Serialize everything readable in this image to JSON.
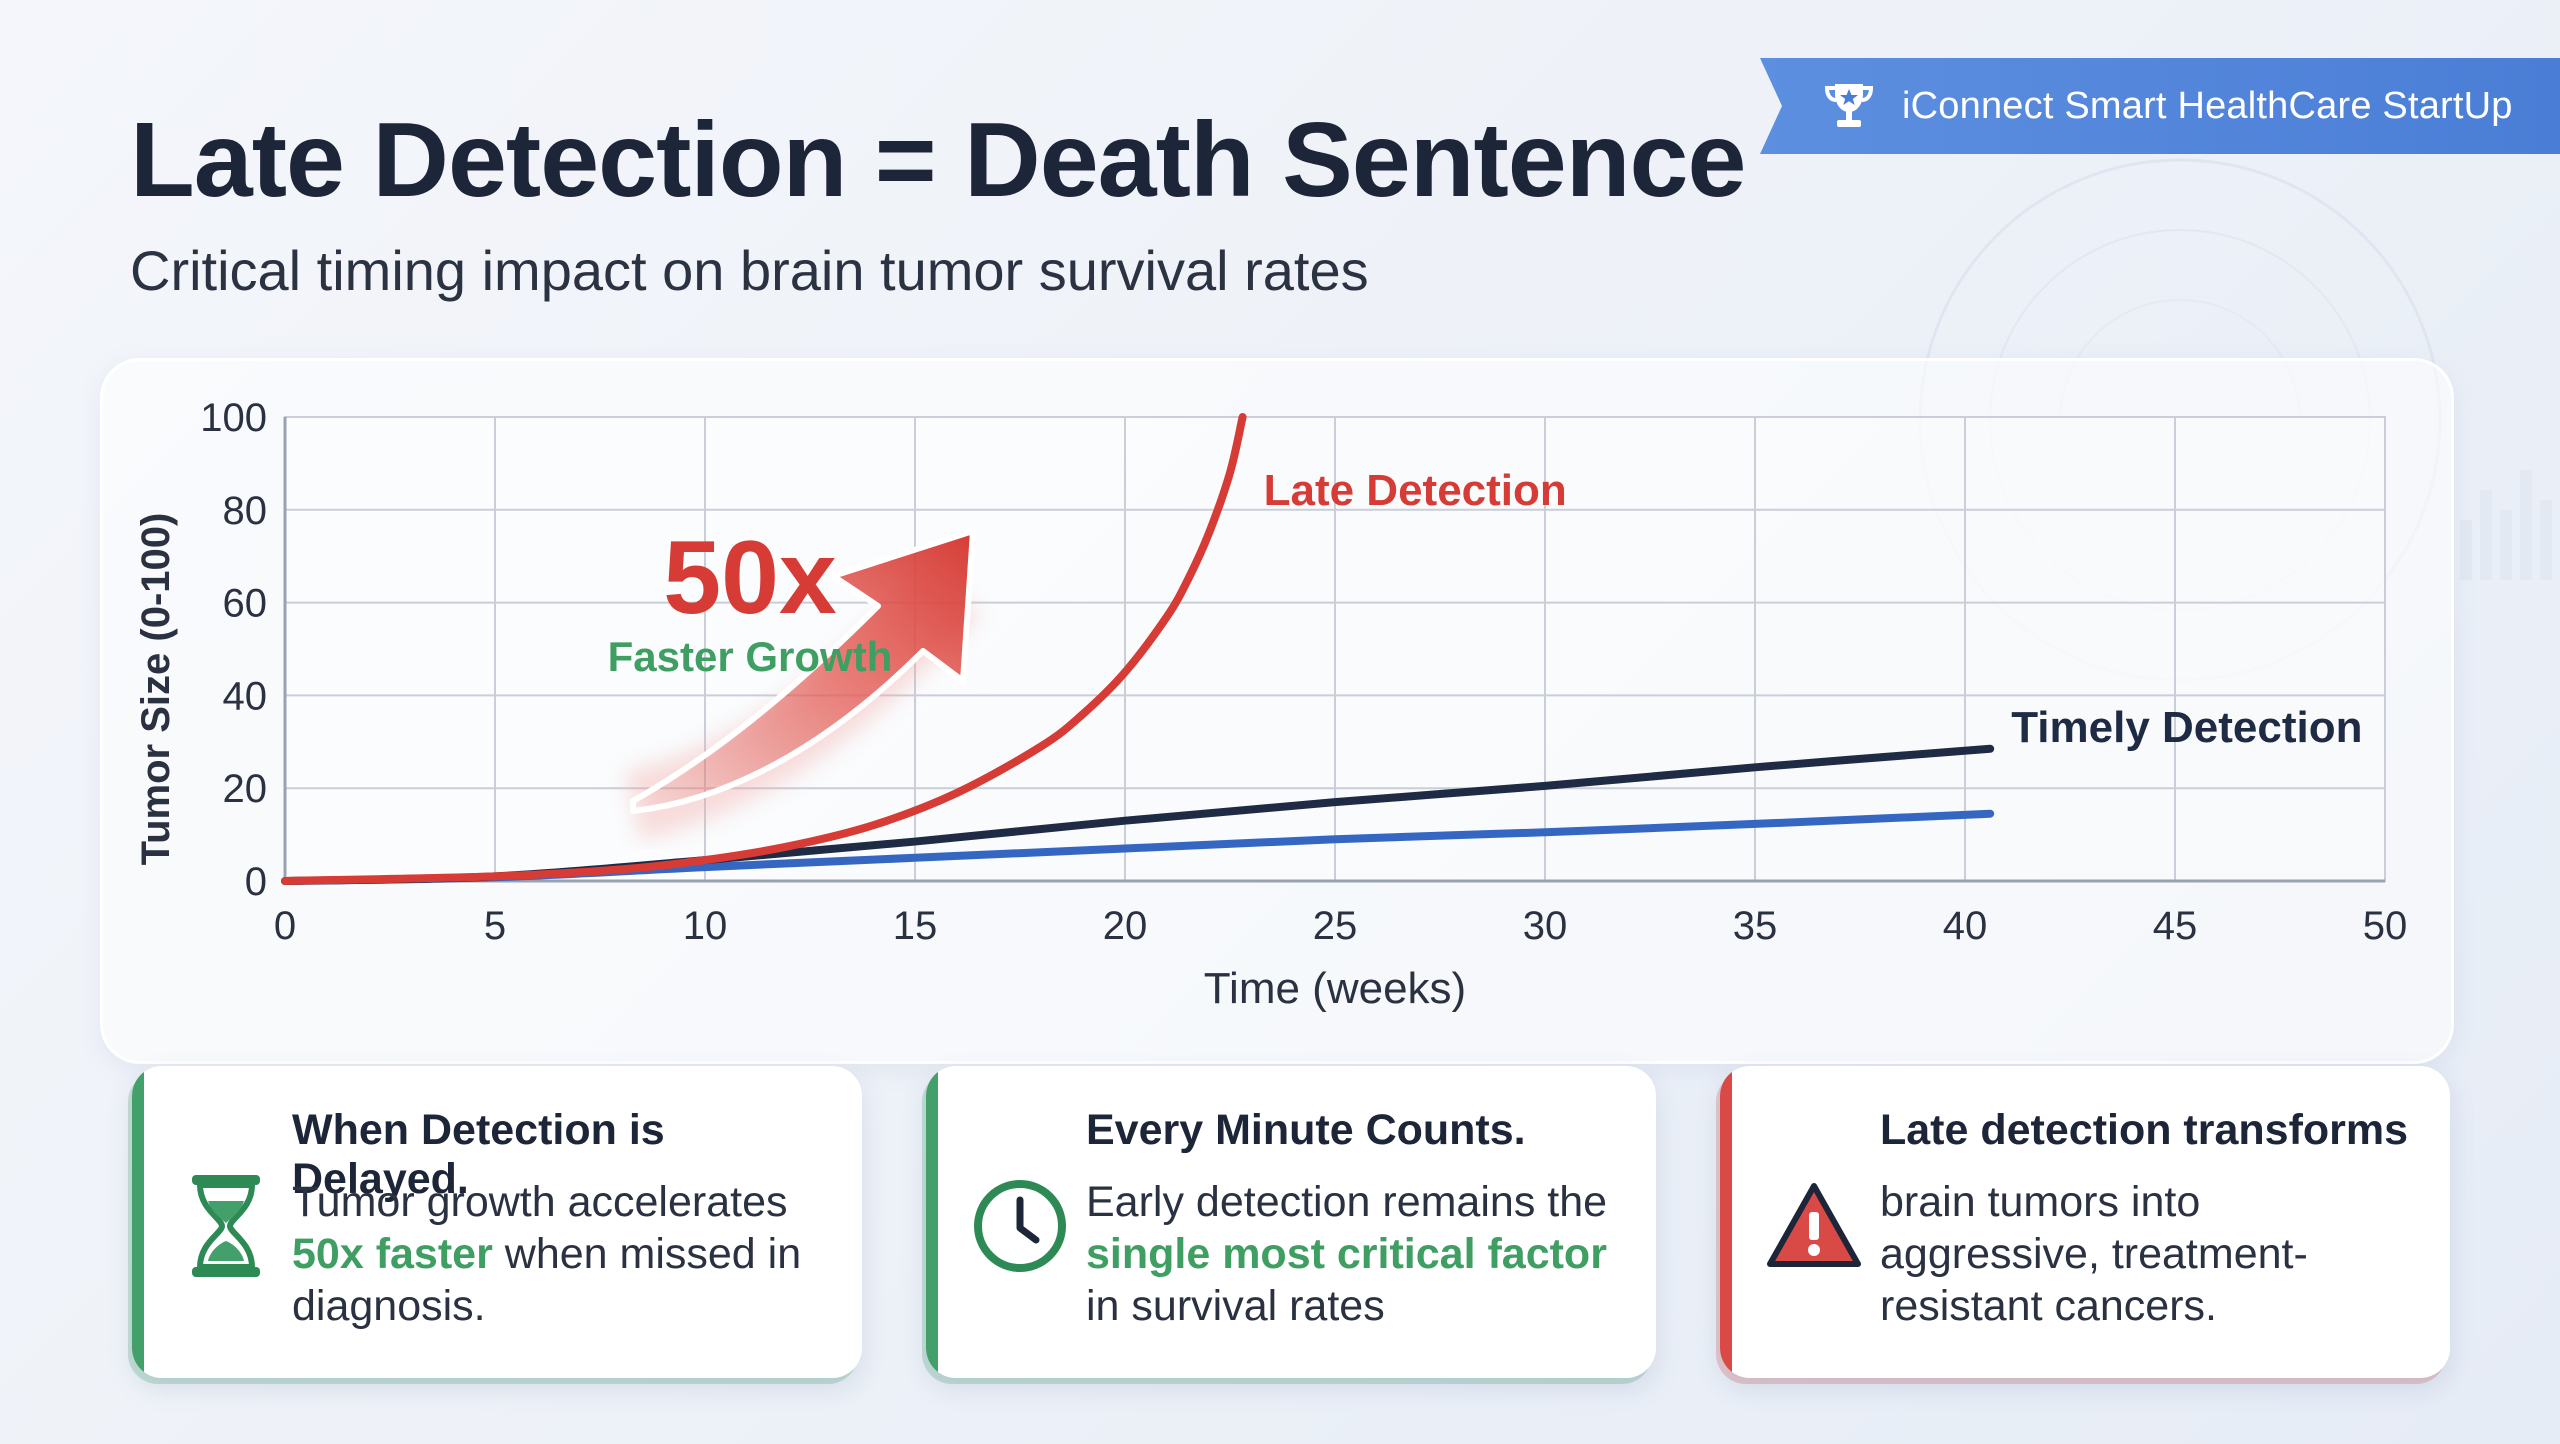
{
  "banner": {
    "label": "iConnect Smart HealthCare StartUp",
    "icon": "trophy-icon"
  },
  "title": "Late Detection = Death Sentence",
  "subtitle": "Critical timing impact on brain tumor survival rates",
  "colors": {
    "late": "#d63b35",
    "timely_dark": "#1f2a44",
    "timely_blue": "#3567c2",
    "green": "#3f9e62",
    "grid": "#c9ced8"
  },
  "annotation": {
    "big": "50x",
    "small": "Faster Growth"
  },
  "chart_data": {
    "type": "line",
    "title": "",
    "xlabel": "Time (weeks)",
    "ylabel": "Tumor Size (0-100)",
    "xlim": [
      0,
      50
    ],
    "ylim": [
      0,
      100
    ],
    "xticks": [
      0,
      5,
      10,
      15,
      20,
      25,
      30,
      35,
      40,
      45,
      50
    ],
    "yticks": [
      0,
      20,
      40,
      60,
      80,
      100
    ],
    "grid": true,
    "series": [
      {
        "name": "Late Detection",
        "color": "#d63b35",
        "x": [
          0,
          5,
          8,
          10,
          12,
          14,
          16,
          18,
          19,
          20,
          21,
          21.5,
          22,
          22.5,
          22.8
        ],
        "y": [
          0,
          1,
          2.5,
          4.5,
          7.5,
          12,
          19,
          29,
          36,
          45,
          57,
          65,
          75,
          88,
          100
        ]
      },
      {
        "name": "Timely Detection",
        "color": "#1f2a44",
        "x": [
          0,
          5,
          10,
          15,
          20,
          25,
          30,
          35,
          40.6
        ],
        "y": [
          0,
          1,
          4.5,
          8.5,
          13,
          17,
          20.5,
          24.5,
          28.5
        ]
      },
      {
        "name": "",
        "color": "#3567c2",
        "x": [
          0,
          5,
          10,
          15,
          20,
          25,
          30,
          35,
          40.6
        ],
        "y": [
          0,
          0.8,
          3,
          5,
          7,
          9,
          10.5,
          12.3,
          14.5
        ]
      }
    ],
    "labels": [
      {
        "text": "Late Detection",
        "series": 0
      },
      {
        "text": "Timely Detection",
        "series": 1
      }
    ]
  },
  "cards": [
    {
      "heading": "When Detection is Delayed.",
      "body_pre": "Tumor growth accelerates ",
      "body_hl": "50x faster",
      "body_post": " when missed in diagnosis.",
      "icon": "hourglass-icon"
    },
    {
      "heading": "Every Minute Counts.",
      "body_pre": "Early detection remains the ",
      "body_hl": "single most critical factor",
      "body_post": " in survival rates",
      "icon": "clock-icon"
    },
    {
      "heading": "Late detection transforms",
      "body_pre": "brain tumors into aggressive, treatment-resistant cancers.",
      "body_hl": "",
      "body_post": "",
      "icon": "warning-icon"
    }
  ]
}
